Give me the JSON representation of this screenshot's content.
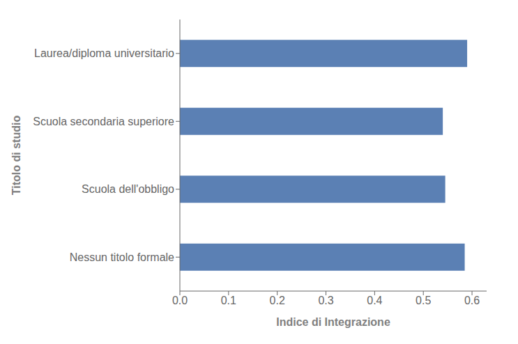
{
  "chart_data": {
    "type": "bar",
    "orientation": "horizontal",
    "categories": [
      "Nessun titolo formale",
      "Scuola dell'obbligo",
      "Scuola secondaria superiore",
      "Laurea/diploma universitario"
    ],
    "values": [
      0.585,
      0.545,
      0.54,
      0.59
    ],
    "color": "#5b80b4",
    "xlabel": "Indice di Integrazione",
    "ylabel": "Titolo di studio",
    "xlim": [
      0.0,
      0.63
    ],
    "xticks": [
      {
        "value": 0,
        "label": "0.0"
      },
      0.1,
      0.2,
      0.3,
      0.4,
      0.5,
      0.6
    ],
    "grid": false
  }
}
